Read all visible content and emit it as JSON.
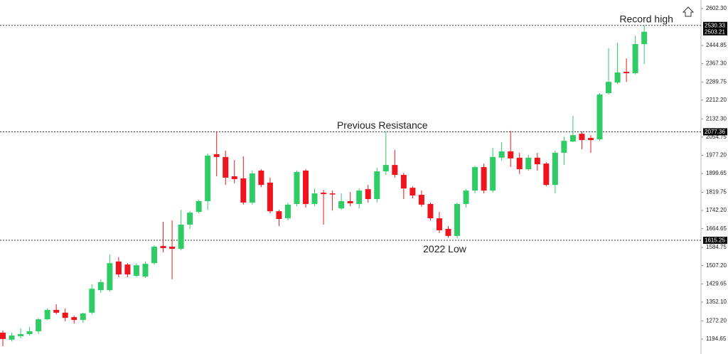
{
  "chart_data": {
    "type": "candlestick",
    "up_color": "#2fcc66",
    "down_color": "#f0141e",
    "ylim": [
      1155.3,
      2638.6
    ],
    "yticks": [
      {
        "value": 2602.3,
        "label": "2602.30"
      },
      2444.85,
      {
        "value": 2367.3,
        "label": "2367.30"
      },
      2289.75,
      {
        "value": 2212.2,
        "label": "2212.20"
      },
      {
        "value": 2132.3,
        "label": "2132.30"
      },
      2054.75,
      {
        "value": 1977.2,
        "label": "1977.20"
      },
      1899.65,
      1819.75,
      {
        "value": 1742.2,
        "label": "1742.20"
      },
      1664.65,
      1584.75,
      {
        "value": 1507.2,
        "label": "1507.20"
      },
      1429.65,
      {
        "value": 1352.1,
        "label": "1352.10"
      },
      {
        "value": 1272.2,
        "label": "1272.20"
      },
      1194.65
    ],
    "levels": [
      2530.33,
      2077.36,
      1615.25
    ],
    "last_price": 2503.21,
    "annotations": [
      {
        "text": "Record high",
        "value": 2530.33,
        "index": 72
      },
      {
        "text": "Previous Resistance",
        "value": 2077.36,
        "index": 43
      },
      {
        "text": "2022 Low",
        "value": 1615.25,
        "index": 50
      }
    ],
    "open": [
      1222,
      1192,
      1207,
      1216,
      1228,
      1279,
      1319,
      1307,
      1288,
      1276,
      1307,
      1403,
      1403,
      1525,
      1512,
      1464,
      1461,
      1518,
      1591,
      1588,
      1579,
      1682,
      1736,
      1782,
      1982,
      1970,
      1888,
      1879,
      1776,
      1912,
      1861,
      1739,
      1709,
      1770,
      1912,
      1770,
      1818,
      1815,
      1751,
      1782,
      1770,
      1833,
      1791,
      1909,
      1936,
      1894,
      1839,
      1809,
      1770,
      1709,
      1664,
      1634,
      1770,
      1827,
      1927,
      1827,
      1967,
      1994,
      1967,
      1918,
      1967,
      1942,
      1851,
      1988,
      2036,
      2069,
      2051,
      2045,
      2242,
      2287,
      2333,
      2327,
      2451
    ],
    "high": [
      1231,
      1222,
      1240,
      1246,
      1285,
      1325,
      1343,
      1325,
      1294,
      1307,
      1428,
      1449,
      1555,
      1543,
      1518,
      1518,
      1525,
      1594,
      1694,
      1700,
      1745,
      1739,
      1788,
      1985,
      2079,
      1997,
      1957,
      1973,
      1912,
      1918,
      1882,
      1745,
      1776,
      1912,
      1918,
      1836,
      1830,
      1827,
      1815,
      1821,
      1836,
      1851,
      1924,
      2079,
      2000,
      1903,
      1845,
      1827,
      1776,
      1736,
      1676,
      1776,
      1833,
      1933,
      1942,
      2009,
      2033,
      2082,
      1988,
      1979,
      1988,
      1948,
      1997,
      2057,
      2145,
      2079,
      2063,
      2242,
      2433,
      2457,
      2390,
      2487,
      2531
    ],
    "low": [
      1164,
      1185,
      1198,
      1210,
      1216,
      1276,
      1300,
      1270,
      1261,
      1264,
      1300,
      1391,
      1397,
      1458,
      1458,
      1458,
      1455,
      1512,
      1564,
      1449,
      1573,
      1664,
      1730,
      1745,
      1888,
      1851,
      1858,
      1767,
      1767,
      1842,
      1730,
      1676,
      1700,
      1761,
      1755,
      1761,
      1682,
      1742,
      1745,
      1761,
      1751,
      1776,
      1776,
      1894,
      1882,
      1791,
      1794,
      1758,
      1700,
      1646,
      1627,
      1624,
      1755,
      1815,
      1815,
      1818,
      1954,
      1927,
      1897,
      1912,
      1912,
      1845,
      1815,
      1936,
      2033,
      2003,
      1988,
      2039,
      2236,
      2281,
      2290,
      2321,
      2366
    ],
    "close": [
      1195,
      1210,
      1216,
      1228,
      1279,
      1319,
      1307,
      1285,
      1276,
      1304,
      1409,
      1437,
      1518,
      1470,
      1470,
      1509,
      1515,
      1588,
      1582,
      1579,
      1682,
      1733,
      1782,
      1976,
      1970,
      1882,
      1876,
      1776,
      1900,
      1851,
      1739,
      1706,
      1767,
      1906,
      1770,
      1815,
      1812,
      1812,
      1782,
      1773,
      1827,
      1791,
      1909,
      1936,
      1894,
      1836,
      1806,
      1767,
      1709,
      1658,
      1634,
      1770,
      1827,
      1927,
      1827,
      1970,
      1994,
      1964,
      1918,
      1967,
      1939,
      1851,
      1988,
      2039,
      2063,
      2042,
      2042,
      2236,
      2290,
      2330,
      2327,
      2451,
      2503.21
    ]
  }
}
